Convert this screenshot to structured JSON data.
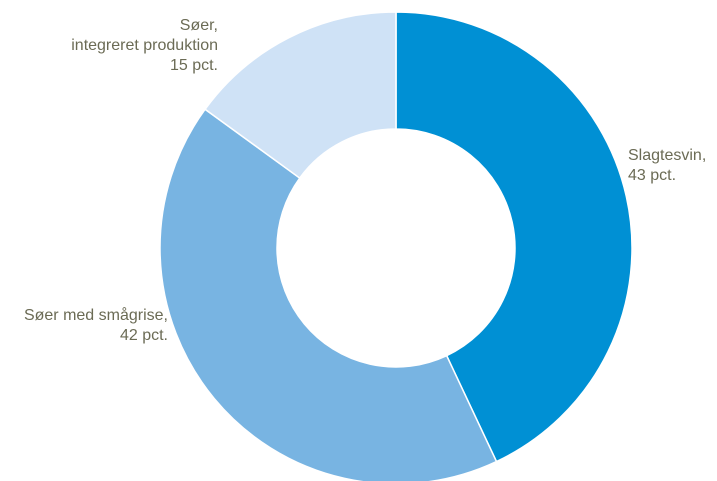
{
  "chart_data": {
    "type": "pie",
    "variant": "donut",
    "title": "",
    "slices": [
      {
        "name": "Slagtesvin",
        "value": 43,
        "display": [
          "Slagtesvin,",
          "43 pct."
        ],
        "color": "#0090d4"
      },
      {
        "name": "Søer med smågrise",
        "value": 42,
        "display": [
          "Søer med smågrise,",
          "42 pct."
        ],
        "color": "#78b4e2"
      },
      {
        "name": "Søer, integreret produktion",
        "value": 15,
        "display": [
          "Søer,",
          "integreret produktion",
          "15 pct."
        ],
        "color": "#cfe2f6"
      }
    ],
    "legend": "none",
    "start_angle": "12 o'clock",
    "direction": "clockwise"
  }
}
